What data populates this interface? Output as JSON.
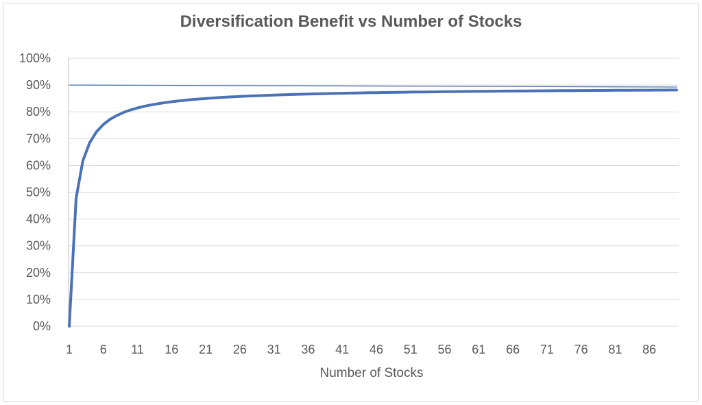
{
  "chart_data": {
    "type": "line",
    "title": "Diversification Benefit vs Number of Stocks",
    "xlabel": "Number of Stocks",
    "ylabel": "",
    "x_range": [
      1,
      90
    ],
    "ylim": [
      0,
      1
    ],
    "y_ticks": [
      "0%",
      "10%",
      "20%",
      "30%",
      "40%",
      "50%",
      "60%",
      "70%",
      "80%",
      "90%",
      "100%"
    ],
    "x_ticks": [
      "1",
      "6",
      "11",
      "16",
      "21",
      "26",
      "31",
      "36",
      "41",
      "46",
      "51",
      "56",
      "61",
      "66",
      "71",
      "76",
      "81",
      "86"
    ],
    "grid": true,
    "series": [
      {
        "color": "#4a72b5",
        "x": [
          1,
          2,
          3,
          4,
          5,
          6,
          7,
          8,
          9,
          10,
          11,
          12,
          13,
          14,
          15,
          16,
          17,
          18,
          19,
          20,
          21,
          22,
          23,
          24,
          25,
          26,
          27,
          28,
          29,
          30,
          31,
          32,
          33,
          34,
          35,
          36,
          37,
          38,
          39,
          40,
          41,
          42,
          43,
          44,
          45,
          46,
          47,
          48,
          49,
          50,
          51,
          52,
          53,
          54,
          55,
          56,
          57,
          58,
          59,
          60,
          61,
          62,
          63,
          64,
          65,
          66,
          67,
          68,
          69,
          70,
          71,
          72,
          73,
          74,
          75,
          76,
          77,
          78,
          79,
          80,
          81,
          82,
          83,
          84,
          85,
          86,
          87,
          88,
          89,
          90
        ],
        "values": [
          0,
          0.4775,
          0.618,
          0.6854,
          0.7259,
          0.7529,
          0.7723,
          0.7868,
          0.7981,
          0.8071,
          0.8145,
          0.8207,
          0.8259,
          0.8303,
          0.8342,
          0.8376,
          0.8406,
          0.8433,
          0.8457,
          0.8478,
          0.8498,
          0.8516,
          0.8532,
          0.8547,
          0.8561,
          0.8574,
          0.8586,
          0.8597,
          0.8607,
          0.8617,
          0.8626,
          0.8635,
          0.8643,
          0.865,
          0.8658,
          0.8664,
          0.8671,
          0.8677,
          0.8683,
          0.8688,
          0.8694,
          0.8699,
          0.8704,
          0.8708,
          0.8713,
          0.8717,
          0.8721,
          0.8725,
          0.8729,
          0.8732,
          0.8736,
          0.8739,
          0.8742,
          0.8745,
          0.8748,
          0.8751,
          0.8754,
          0.8757,
          0.876,
          0.8762,
          0.8765,
          0.8767,
          0.8769,
          0.8772,
          0.8774,
          0.8776,
          0.8778,
          0.878,
          0.8782,
          0.8784,
          0.8786,
          0.8788,
          0.879,
          0.8791,
          0.8793,
          0.8795,
          0.8796,
          0.8798,
          0.8799,
          0.8801,
          0.8802,
          0.8804,
          0.8805,
          0.8807,
          0.8808,
          0.8809,
          0.8811,
          0.8812,
          0.8813,
          0.8814
        ]
      },
      {
        "color": "#4a72b5",
        "x": [
          1,
          90
        ],
        "values": [
          0.9,
          0.8925
        ]
      }
    ]
  }
}
